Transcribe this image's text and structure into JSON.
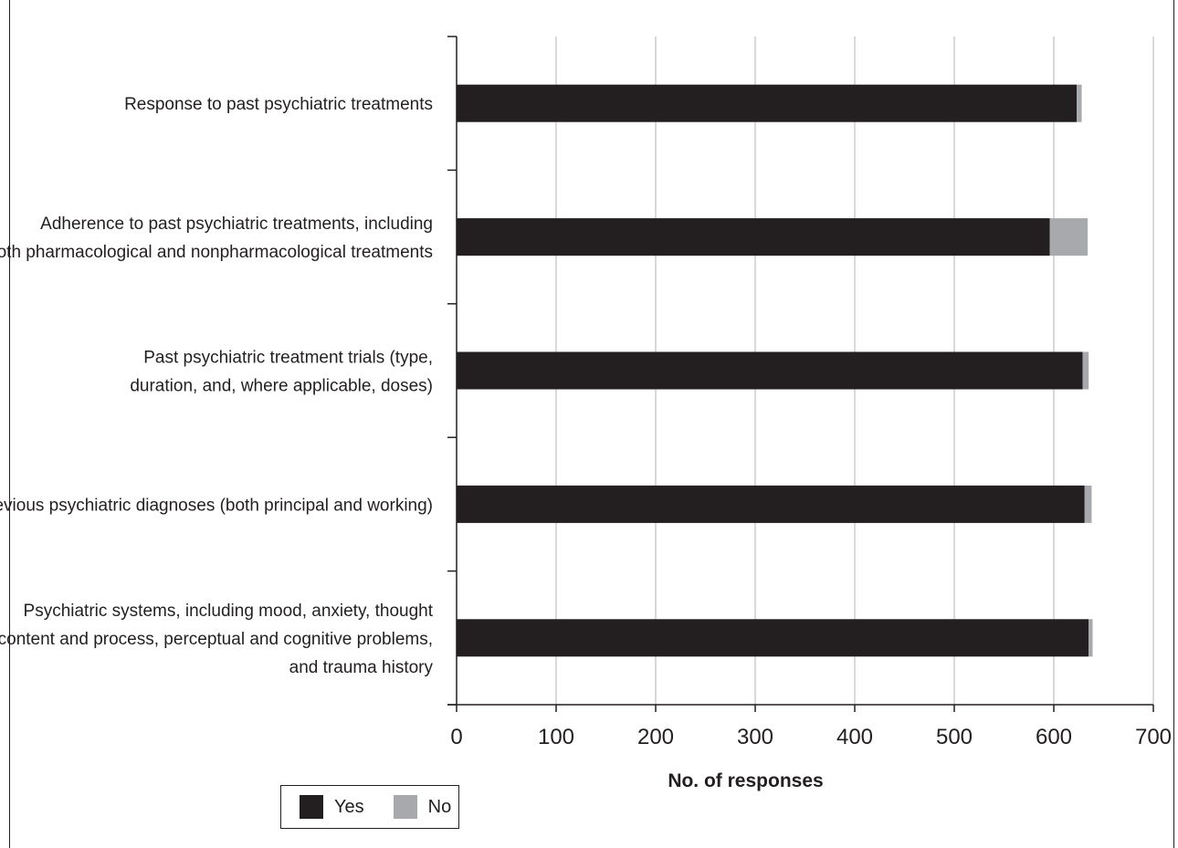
{
  "chart_data": {
    "type": "bar",
    "orientation": "horizontal",
    "stacked": true,
    "categories": [
      [
        "Response to past psychiatric treatments"
      ],
      [
        "Adherence to past psychiatric treatments, including",
        "both pharmacological and nonpharmacological treatments"
      ],
      [
        "Past psychiatric treatment trials (type,",
        "duration, and, where applicable, doses)"
      ],
      [
        "Previous psychiatric diagnoses (both principal and working)"
      ],
      [
        "Psychiatric systems, including mood, anxiety, thought",
        "content and process, perceptual and cognitive problems,",
        "and trauma history"
      ]
    ],
    "series": [
      {
        "name": "Yes",
        "color": "#231f20",
        "values": [
          623,
          596,
          629,
          631,
          635
        ]
      },
      {
        "name": "No",
        "color": "#a7a9ac",
        "values": [
          5,
          38,
          6,
          7,
          4
        ]
      }
    ],
    "xlim": [
      0,
      700
    ],
    "xticks": [
      0,
      100,
      200,
      300,
      400,
      500,
      600,
      700
    ],
    "xlabel": "No. of responses",
    "ylabel": "",
    "grid": "vertical",
    "legend_position": "bottom-left"
  }
}
